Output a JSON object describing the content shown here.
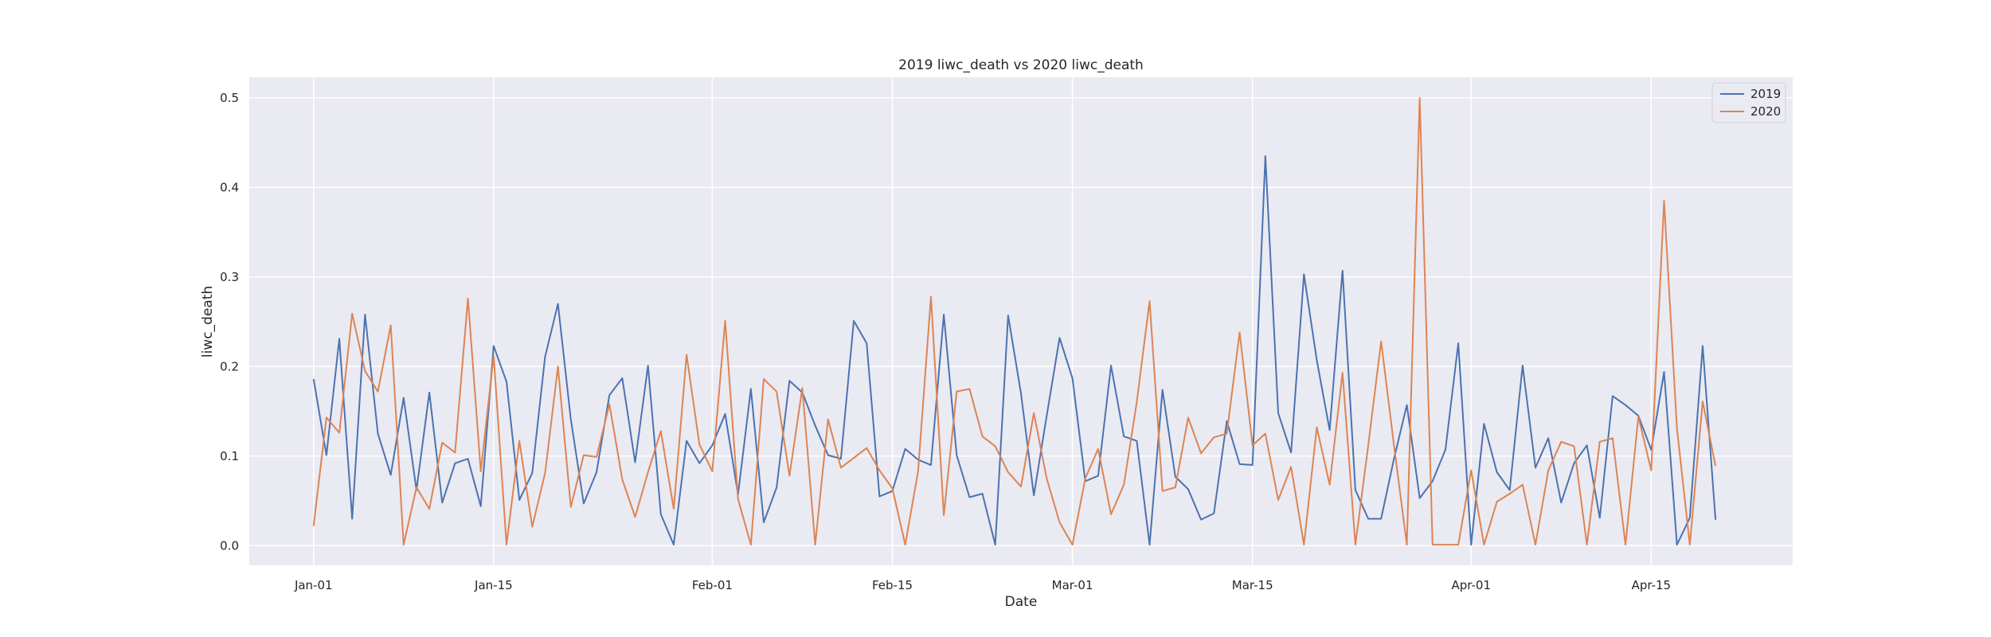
{
  "chart_data": {
    "type": "line",
    "title": "2019 liwc_death vs 2020 liwc_death",
    "xlabel": "Date",
    "ylabel": "liwc_death",
    "x_unit": "day index from Jan-01 (0 = Jan-01)",
    "xlim": [
      -5,
      115
    ],
    "ylim": [
      -0.022,
      0.523
    ],
    "grid": true,
    "legend_position": "top-right",
    "colors": {
      "2019": "#4c72b0",
      "2020": "#dd8452",
      "background": "#eaeaf2",
      "grid": "#ffffff"
    },
    "x_ticks": [
      {
        "value": 0,
        "label": "Jan-01"
      },
      {
        "value": 14,
        "label": "Jan-15"
      },
      {
        "value": 31,
        "label": "Feb-01"
      },
      {
        "value": 45,
        "label": "Feb-15"
      },
      {
        "value": 59,
        "label": "Mar-01"
      },
      {
        "value": 73,
        "label": "Mar-15"
      },
      {
        "value": 90,
        "label": "Apr-01"
      },
      {
        "value": 104,
        "label": "Apr-15"
      }
    ],
    "y_ticks": [
      {
        "value": 0.0,
        "label": "0.0"
      },
      {
        "value": 0.1,
        "label": "0.1"
      },
      {
        "value": 0.2,
        "label": "0.2"
      },
      {
        "value": 0.3,
        "label": "0.3"
      },
      {
        "value": 0.4,
        "label": "0.4"
      },
      {
        "value": 0.5,
        "label": "0.5"
      }
    ],
    "series": [
      {
        "name": "2019",
        "values": [
          0.186,
          0.101,
          0.231,
          0.03,
          0.258,
          0.125,
          0.079,
          0.165,
          0.062,
          0.171,
          0.048,
          0.092,
          0.097,
          0.044,
          0.223,
          0.183,
          0.051,
          0.081,
          0.211,
          0.27,
          0.141,
          0.047,
          0.082,
          0.168,
          0.187,
          0.093,
          0.201,
          0.035,
          0.001,
          0.117,
          0.092,
          0.112,
          0.147,
          0.057,
          0.175,
          0.026,
          0.065,
          0.184,
          0.171,
          0.134,
          0.101,
          0.097,
          0.251,
          0.226,
          0.055,
          0.061,
          0.108,
          0.096,
          0.09,
          0.258,
          0.101,
          0.054,
          0.058,
          0.001,
          0.257,
          0.17,
          0.056,
          0.145,
          0.232,
          0.187,
          0.072,
          0.078,
          0.201,
          0.122,
          0.117,
          0.001,
          0.174,
          0.077,
          0.063,
          0.029,
          0.036,
          0.139,
          0.091,
          0.09,
          0.435,
          0.148,
          0.104,
          0.303,
          0.207,
          0.129,
          0.307,
          0.062,
          0.03,
          0.03,
          0.097,
          0.157,
          0.053,
          0.072,
          0.107,
          0.226,
          0.001,
          0.136,
          0.082,
          0.062,
          0.201,
          0.087,
          0.12,
          0.048,
          0.092,
          0.112,
          0.031,
          0.167,
          0.157,
          0.145,
          0.107,
          0.194,
          0.001,
          0.031,
          0.223,
          0.029
        ]
      },
      {
        "name": "2020",
        "values": [
          0.022,
          0.143,
          0.126,
          0.259,
          0.195,
          0.172,
          0.246,
          0.001,
          0.065,
          0.041,
          0.115,
          0.104,
          0.276,
          0.083,
          0.212,
          0.001,
          0.117,
          0.021,
          0.081,
          0.2,
          0.043,
          0.101,
          0.099,
          0.158,
          0.074,
          0.032,
          0.082,
          0.128,
          0.041,
          0.213,
          0.113,
          0.083,
          0.251,
          0.052,
          0.001,
          0.186,
          0.172,
          0.078,
          0.176,
          0.001,
          0.141,
          0.087,
          0.098,
          0.109,
          0.084,
          0.064,
          0.001,
          0.083,
          0.278,
          0.034,
          0.172,
          0.175,
          0.122,
          0.111,
          0.082,
          0.066,
          0.148,
          0.075,
          0.026,
          0.001,
          0.075,
          0.108,
          0.035,
          0.068,
          0.16,
          0.273,
          0.061,
          0.065,
          0.143,
          0.103,
          0.121,
          0.125,
          0.238,
          0.112,
          0.125,
          0.051,
          0.088,
          0.001,
          0.132,
          0.068,
          0.193,
          0.001,
          0.112,
          0.228,
          0.112,
          0.001,
          0.5,
          0.001,
          0.001,
          0.001,
          0.084,
          0.001,
          0.049,
          0.058,
          0.068,
          0.001,
          0.084,
          0.116,
          0.111,
          0.001,
          0.116,
          0.12,
          0.001,
          0.144,
          0.084,
          0.385,
          0.131,
          0.001,
          0.161,
          0.089
        ]
      }
    ]
  }
}
